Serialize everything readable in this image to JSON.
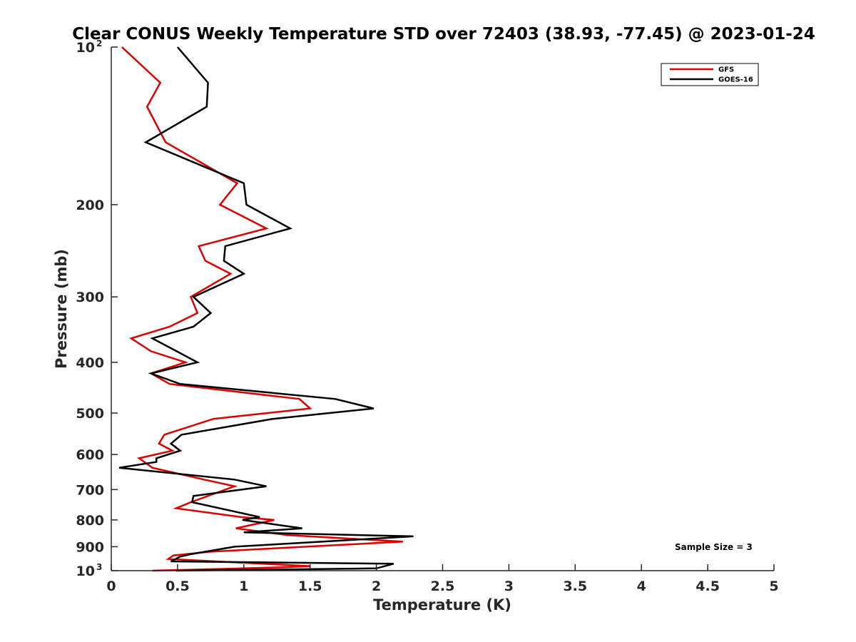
{
  "chart_data": {
    "type": "line",
    "title": "Clear CONUS Weekly Temperature STD over 72403 (38.93, -77.45) @ 2023-01-24",
    "xlabel": "Temperature (K)",
    "ylabel": "Pressure (mb)",
    "xlim": [
      0,
      5
    ],
    "ylim": [
      100,
      1000
    ],
    "y_scale": "log",
    "y_reversed": true,
    "grid": false,
    "legend_position": "top-right",
    "x_ticks": [
      {
        "value": 0,
        "label": "0"
      },
      {
        "value": 0.5,
        "label": "0.5"
      },
      {
        "value": 1,
        "label": "1"
      },
      {
        "value": 1.5,
        "label": "1.5"
      },
      {
        "value": 2,
        "label": "2"
      },
      {
        "value": 2.5,
        "label": "2.5"
      },
      {
        "value": 3,
        "label": "3"
      },
      {
        "value": 3.5,
        "label": "3.5"
      },
      {
        "value": 4,
        "label": "4"
      },
      {
        "value": 4.5,
        "label": "4.5"
      },
      {
        "value": 5,
        "label": "5"
      }
    ],
    "y_ticks": [
      {
        "value": 100,
        "label": "10",
        "sup": "2"
      },
      {
        "value": 200,
        "label": "200"
      },
      {
        "value": 300,
        "label": "300"
      },
      {
        "value": 400,
        "label": "400"
      },
      {
        "value": 500,
        "label": "500"
      },
      {
        "value": 600,
        "label": "600"
      },
      {
        "value": 700,
        "label": "700"
      },
      {
        "value": 800,
        "label": "800"
      },
      {
        "value": 900,
        "label": "900"
      },
      {
        "value": 1000,
        "label": "10",
        "sup": "3"
      }
    ],
    "series": [
      {
        "name": "GFS",
        "color": "#dd0000",
        "points": [
          [
            0.08,
            100
          ],
          [
            0.37,
            117
          ],
          [
            0.27,
            130
          ],
          [
            0.41,
            152
          ],
          [
            0.95,
            182
          ],
          [
            0.82,
            200
          ],
          [
            1.17,
            222
          ],
          [
            0.66,
            240
          ],
          [
            0.71,
            256
          ],
          [
            0.9,
            271
          ],
          [
            0.6,
            300
          ],
          [
            0.65,
            322
          ],
          [
            0.44,
            342
          ],
          [
            0.15,
            360
          ],
          [
            0.3,
            381
          ],
          [
            0.56,
            400
          ],
          [
            0.3,
            420
          ],
          [
            0.44,
            440
          ],
          [
            1.42,
            470
          ],
          [
            1.5,
            490
          ],
          [
            0.77,
            513
          ],
          [
            0.4,
            550
          ],
          [
            0.36,
            572
          ],
          [
            0.46,
            590
          ],
          [
            0.21,
            610
          ],
          [
            0.31,
            636
          ],
          [
            0.7,
            670
          ],
          [
            0.93,
            690
          ],
          [
            0.6,
            740
          ],
          [
            0.49,
            760
          ],
          [
            0.98,
            790
          ],
          [
            1.23,
            800
          ],
          [
            0.94,
            830
          ],
          [
            1.33,
            855
          ],
          [
            2.2,
            880
          ],
          [
            0.75,
            920
          ],
          [
            0.47,
            935
          ],
          [
            0.43,
            950
          ],
          [
            1.5,
            980
          ],
          [
            1.3,
            985
          ],
          [
            0.31,
            1000
          ]
        ]
      },
      {
        "name": "GOES-16",
        "color": "#000000",
        "points": [
          [
            0.5,
            100
          ],
          [
            0.73,
            117
          ],
          [
            0.72,
            130
          ],
          [
            0.26,
            152
          ],
          [
            1.0,
            182
          ],
          [
            1.02,
            200
          ],
          [
            1.35,
            222
          ],
          [
            0.86,
            240
          ],
          [
            0.85,
            256
          ],
          [
            1.0,
            271
          ],
          [
            0.62,
            300
          ],
          [
            0.75,
            322
          ],
          [
            0.62,
            342
          ],
          [
            0.31,
            360
          ],
          [
            0.65,
            400
          ],
          [
            0.3,
            420
          ],
          [
            0.52,
            440
          ],
          [
            1.69,
            470
          ],
          [
            1.98,
            490
          ],
          [
            1.22,
            513
          ],
          [
            0.53,
            550
          ],
          [
            0.45,
            572
          ],
          [
            0.52,
            590
          ],
          [
            0.34,
            610
          ],
          [
            0.34,
            620
          ],
          [
            0.06,
            636
          ],
          [
            0.93,
            670
          ],
          [
            1.17,
            690
          ],
          [
            0.62,
            720
          ],
          [
            0.61,
            740
          ],
          [
            0.92,
            770
          ],
          [
            1.12,
            790
          ],
          [
            0.99,
            800
          ],
          [
            1.44,
            830
          ],
          [
            1.0,
            845
          ],
          [
            2.28,
            860
          ],
          [
            0.93,
            900
          ],
          [
            0.6,
            930
          ],
          [
            0.52,
            940
          ],
          [
            0.45,
            960
          ],
          [
            2.13,
            970
          ],
          [
            2.0,
            990
          ],
          [
            0.49,
            1000
          ]
        ]
      }
    ],
    "annotation": "Sample Size = 3"
  }
}
